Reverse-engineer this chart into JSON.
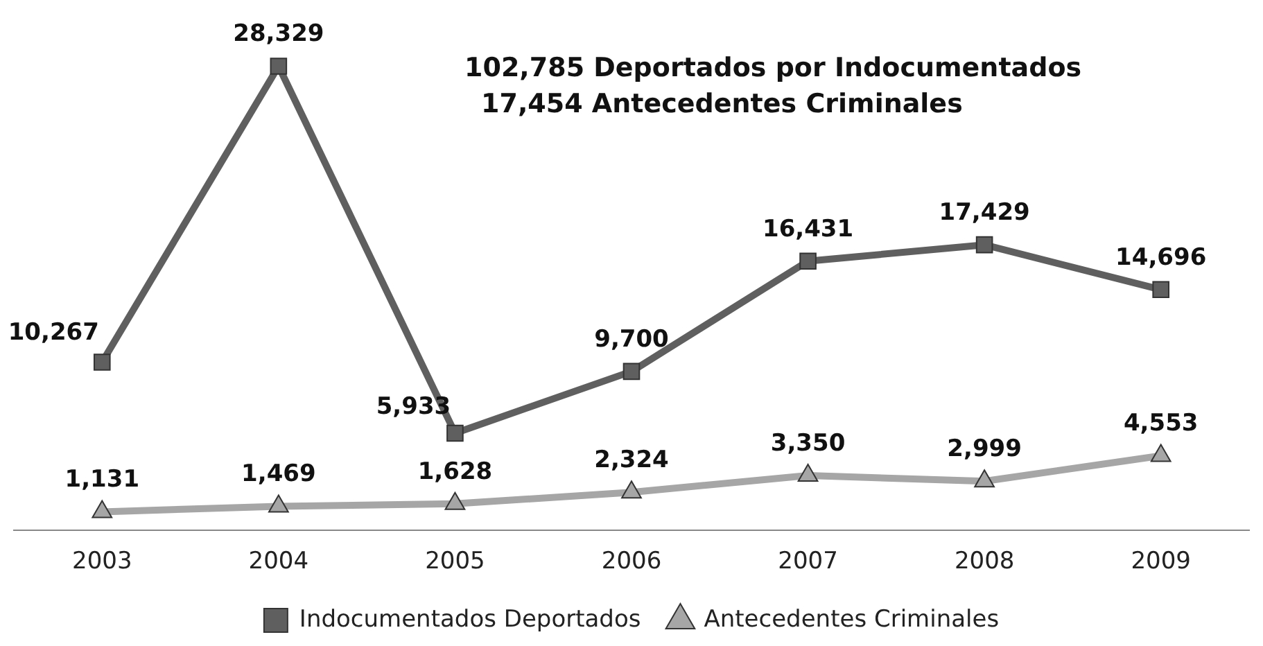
{
  "chart_data": {
    "type": "line",
    "categories": [
      "2003",
      "2004",
      "2005",
      "2006",
      "2007",
      "2008",
      "2009"
    ],
    "series": [
      {
        "name": "Indocumentados Deportados",
        "color": "#5f5f5f",
        "marker": "square",
        "values": [
          10267,
          28329,
          5933,
          9700,
          16431,
          17429,
          14696
        ],
        "value_labels": [
          "10,267",
          "28,329",
          "5,933",
          "9,700",
          "16,431",
          "17,429",
          "14,696"
        ]
      },
      {
        "name": "Antecedentes Criminales",
        "color": "#a6a6a6",
        "marker": "triangle",
        "values": [
          1131,
          1469,
          1628,
          2324,
          3350,
          2999,
          4553
        ],
        "value_labels": [
          "1,131",
          "1,469",
          "1,628",
          "2,324",
          "3,350",
          "2,999",
          "4,553"
        ]
      }
    ],
    "legend": "bottom",
    "grid": false,
    "annotations": [
      "102,785 Deportados por Indocumentados",
      "17,454  Antecedentes Criminales"
    ]
  }
}
